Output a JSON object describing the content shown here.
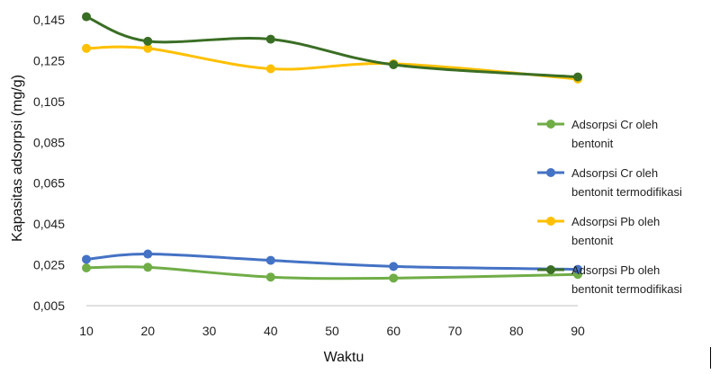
{
  "chart_data": {
    "type": "line",
    "x": [
      10,
      20,
      40,
      60,
      90
    ],
    "xticks": [
      10,
      20,
      30,
      40,
      50,
      60,
      70,
      80,
      90
    ],
    "xlabel": "Waktu",
    "ylabel": "Kapasitas adsorpsi (mg/g)",
    "yticks": [
      "0,005",
      "0,025",
      "0,045",
      "0,065",
      "0,085",
      "0,105",
      "0,125",
      "0,145"
    ],
    "ylim": [
      0.005,
      0.145
    ],
    "xlim": [
      10,
      90
    ],
    "grid": false,
    "legend_position": "right",
    "series": [
      {
        "name": "Adsorpsi Cr oleh bentonit",
        "legend_lines": [
          "Adsorpsi Cr oleh",
          "bentonit"
        ],
        "color": "#70ad47",
        "values": [
          0.0235,
          0.0238,
          0.019,
          0.0185,
          0.0203
        ]
      },
      {
        "name": "Adsorpsi Cr oleh bentonit termodifikasi",
        "legend_lines": [
          "Adsorpsi Cr oleh",
          "bentonit termodifikasi"
        ],
        "color": "#4472c4",
        "values": [
          0.0277,
          0.0303,
          0.0272,
          0.0242,
          0.0228
        ]
      },
      {
        "name": "Adsorpsi Pb oleh bentonit",
        "legend_lines": [
          "Adsorpsi Pb oleh",
          "bentonit"
        ],
        "color": "#ffc000",
        "values": [
          0.131,
          0.131,
          0.121,
          0.1235,
          0.116
        ]
      },
      {
        "name": "Adsorpsi Pb oleh bentonit termodifikasi",
        "legend_lines": [
          "Adsorpsi Pb oleh",
          "bentonit termodifikasi"
        ],
        "color": "#3a6e25",
        "values": [
          0.1465,
          0.1345,
          0.1355,
          0.123,
          0.117
        ]
      }
    ]
  }
}
